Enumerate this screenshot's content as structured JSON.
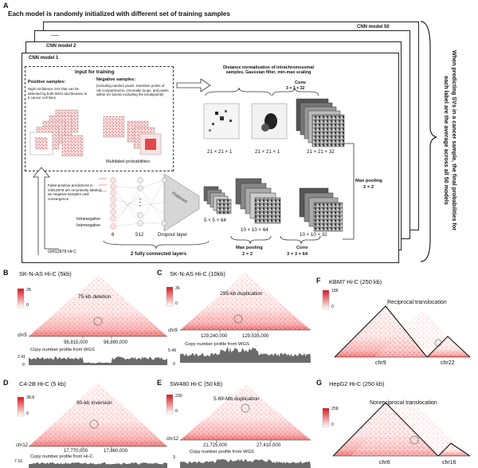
{
  "panel_a": {
    "letter": "A",
    "header": "Each model is randomly initialized with different set of training samples",
    "model_50": "CNN model 50",
    "model_dots": "......",
    "model_2": "CNN model 2",
    "model_1": "CNN model 1",
    "input_title": "Input for training",
    "pos_title": "Positive samples:",
    "pos_desc": "High-confidence SVs that can be detected by both WGS and bionano in 8 cancer cell lines",
    "neg_title": "Negative samples:",
    "neg_desc": "(including random pixels, transition points of AB compartments, chromatin loops, and pixels within SV blocks excluding the breakpoints)",
    "norm_text": "Distance normalization of intrachromosomal samples, Gaussian filter, min-max scaling",
    "conv1": "Conv",
    "conv1_dim": "3 × 3 × 32",
    "dim1": "21 × 21 × 1",
    "dim2": "21 × 21 × 1",
    "dim3": "21 × 21 × 32",
    "maxpool1": "Max pooling",
    "maxpool1_dim": "2 × 2",
    "multilabel": "Multilabel probabilities",
    "fp_text": "False-positive predictions in GM12878 are recursively labeled as negative samples until convergence",
    "intrachrom": "Intranegative",
    "interchrom": "Internegative",
    "n6": "6",
    "n512": "512",
    "dropout": "Dropout layer",
    "flattened": "Flattened",
    "dim_5": "5 × 5 × 64",
    "dim_10a": "10 × 10 × 64",
    "dim_10b": "10 × 10 × 32",
    "fc": "2 fully connected layers",
    "maxpool2": "Max pooling",
    "maxpool2_dim": "2 × 2",
    "conv2": "Conv",
    "conv2_dim": "3 × 3 × 64",
    "gm": "GM12878 Hi-C",
    "side": "When predicting SVs in a cancer sample, the final probabilities for each label are the average across all 50 models"
  },
  "panel_b": {
    "letter": "B",
    "title": "SK-N-AS Hi-C (5kb)",
    "cmax": "28",
    "cmin": "0",
    "event": "75-kb deletion",
    "chr": "chr5",
    "x1": "98,815,000",
    "x2": "98,890,000",
    "track": "Copy number profile from WGS",
    "tmax": "2.41",
    "tmin": "0"
  },
  "panel_c": {
    "letter": "C",
    "title": "SK-N-AS Hi-C (10kb)",
    "cmax": "36",
    "cmin": "0",
    "event": "295-kb duplication",
    "chr": "chr9",
    "x1": "129,240,000",
    "x2": "129,535,000",
    "track": "Copy number profile from WGS",
    "tmax": "5.49",
    "tmin": "0"
  },
  "panel_d": {
    "letter": "D",
    "title": "C4-2B Hi-C (5 kb)",
    "cmax": "38.8",
    "cmin": "0",
    "event": "90-kb inversion",
    "chr": "chr12",
    "x1": "17,770,000",
    "x2": "17,860,000",
    "track": "Copy number profile from Hi-C",
    "tmax": "7.16",
    "tmin": "0"
  },
  "panel_e": {
    "letter": "E",
    "title": "SW480 Hi-C (50 kb)",
    "cmax": "230",
    "cmin": "0",
    "event": "5.69-Mb duplication",
    "chr": "chr12",
    "x1": "21,725,000",
    "x2": "27,410,000",
    "track": "Copy number profile from WGS",
    "tmax": "3",
    "tmin": "0"
  },
  "panel_f": {
    "letter": "F",
    "title": "KBM7 Hi-C (250 kb)",
    "cmax": "186",
    "cmin": "0",
    "event": "Reciprocal translocation",
    "chr_a": "chr9",
    "chr_b": "chr22"
  },
  "panel_g": {
    "letter": "G",
    "title": "HepG2 Hi-C (250 kb)",
    "cmax": "258",
    "cmin": "0",
    "event": "Nonreciprocal translocation",
    "chr_a": "chr6",
    "chr_b": "chr16"
  },
  "colors": {
    "heat": "#d7191c",
    "track": "#6b6b6b",
    "accent": "#e07070"
  }
}
